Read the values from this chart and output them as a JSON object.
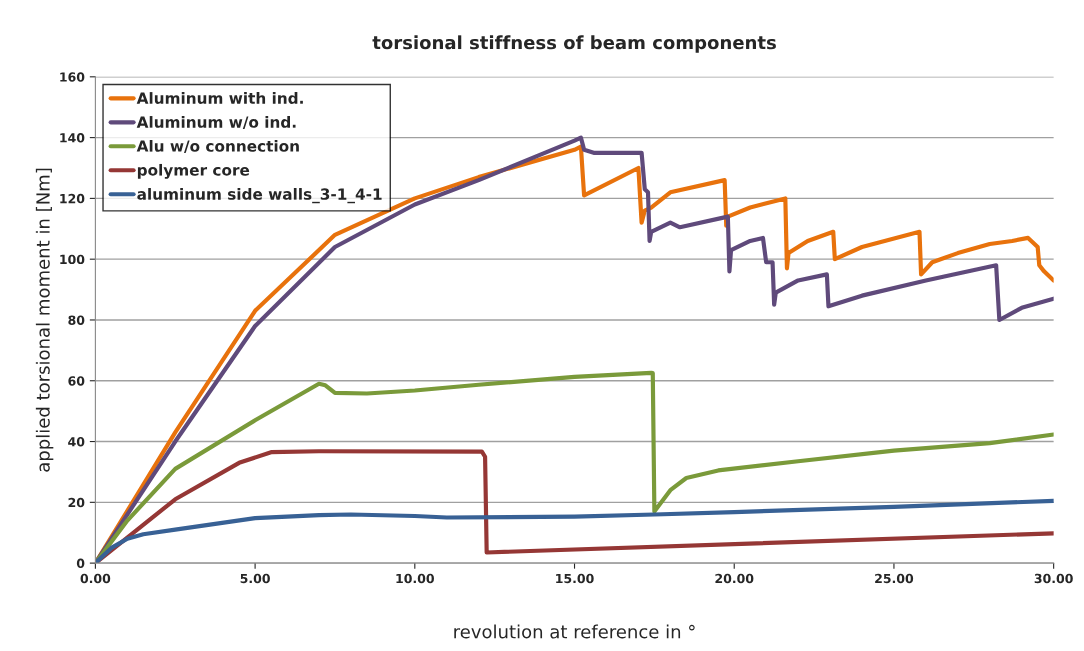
{
  "chart_data": {
    "type": "line",
    "title": "torsional stiffness of beam components",
    "xlabel": "revolution at reference in °",
    "ylabel": "applied torsional moment in [Nm]",
    "xlim": [
      0,
      30
    ],
    "xticks": [
      {
        "value": 0,
        "label": "0.00"
      },
      {
        "value": 5,
        "label": "5.00"
      },
      {
        "value": 10,
        "label": "10.00"
      },
      {
        "value": 15,
        "label": "15.00"
      },
      {
        "value": 20,
        "label": "20.00"
      },
      {
        "value": 25,
        "label": "25.00"
      },
      {
        "value": 30,
        "label": "30.00"
      }
    ],
    "ylim": [
      0,
      160
    ],
    "yticks": [
      0,
      20,
      40,
      60,
      80,
      100,
      120,
      140,
      160
    ],
    "grid": "y",
    "legend": "top left",
    "marker": "none",
    "line_style": "solid",
    "series": [
      {
        "name": "Aluminum with ind.",
        "color": "#e8720c",
        "x": [
          0,
          2.5,
          5,
          7.5,
          10,
          12,
          15,
          15.2,
          15.3,
          17.0,
          17.1,
          17.2,
          17.4,
          18,
          19.7,
          19.75,
          19.8,
          20.5,
          21.6,
          21.65,
          21.7,
          22.3,
          23.1,
          23.15,
          24,
          25.8,
          25.85,
          26.2,
          27,
          28,
          28.7,
          29.2,
          29.3,
          29.5,
          29.55,
          29.7,
          30
        ],
        "values": [
          0,
          43,
          83,
          108,
          120,
          127,
          136,
          137,
          121,
          130,
          112,
          116,
          117,
          122,
          126,
          111,
          114,
          117,
          120,
          97,
          102,
          106,
          109,
          100,
          104,
          109,
          95,
          99,
          102,
          105,
          106,
          107,
          106,
          104,
          98,
          96,
          93
        ]
      },
      {
        "name": "Aluminum w/o ind.",
        "color": "#5f4a7b",
        "x": [
          0,
          2.5,
          5,
          7.5,
          10,
          12,
          15,
          15.2,
          15.3,
          15.6,
          17.1,
          17.2,
          17.3,
          17.35,
          17.4,
          18,
          18.3,
          19.8,
          19.85,
          19.9,
          20.5,
          20.9,
          21.0,
          21.2,
          21.25,
          21.3,
          22.0,
          22.9,
          22.95,
          24,
          26,
          28.2,
          28.3,
          29,
          30
        ],
        "values": [
          0,
          40,
          78,
          104,
          118,
          126,
          139,
          140,
          136,
          135,
          135,
          123,
          122,
          106,
          109,
          112,
          110.5,
          114,
          96,
          103,
          106,
          107,
          99,
          99,
          85,
          89,
          93,
          95,
          84.5,
          88,
          93,
          98,
          80,
          84,
          87
        ]
      },
      {
        "name": "Alu w/o connection",
        "color": "#7a9a3a",
        "x": [
          0,
          1,
          2.5,
          5,
          7.0,
          7.2,
          7.5,
          8.5,
          10,
          12,
          15,
          17.4,
          17.45,
          17.5,
          18,
          18.5,
          19.5,
          22,
          25,
          28,
          30
        ],
        "values": [
          0,
          14,
          31,
          47,
          59,
          58.5,
          56,
          55.8,
          56.8,
          58.7,
          61.3,
          62.6,
          62.5,
          17,
          24,
          28,
          30.5,
          33.5,
          37,
          39.5,
          42.3
        ]
      },
      {
        "name": "polymer core",
        "color": "#953735",
        "x": [
          0,
          2.5,
          4.5,
          5.5,
          7,
          12.1,
          12.2,
          12.25,
          30
        ],
        "values": [
          0,
          21,
          33,
          36.5,
          36.8,
          36.7,
          35,
          3.5,
          9.8
        ]
      },
      {
        "name": "aluminum side walls_3-1_4-1",
        "color": "#386195",
        "x": [
          0,
          0.5,
          1,
          1.5,
          2.5,
          5,
          7,
          8,
          10,
          11,
          15,
          17.5,
          20,
          25,
          30
        ],
        "values": [
          0,
          5,
          8,
          9.5,
          11,
          14.8,
          15.8,
          16,
          15.5,
          15,
          15.3,
          16,
          16.8,
          18.5,
          20.5
        ]
      }
    ]
  }
}
